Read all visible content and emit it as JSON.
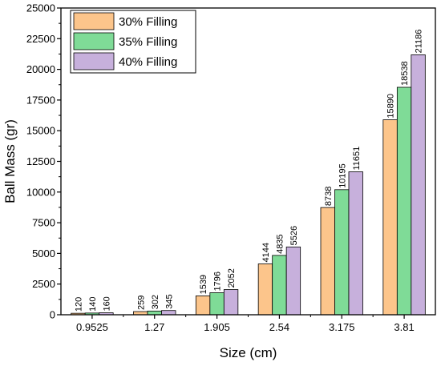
{
  "chart_data": {
    "type": "bar",
    "title": "",
    "xlabel": "Size (cm)",
    "ylabel": "Ball Mass (gr)",
    "categories": [
      "0.9525",
      "1.27",
      "1.905",
      "2.54",
      "3.175",
      "3.81"
    ],
    "series": [
      {
        "name": "30% Filling",
        "color": "#fcc58b",
        "values": [
          120,
          259,
          1539,
          4144,
          8738,
          15890
        ]
      },
      {
        "name": "35% Filling",
        "color": "#7fdb97",
        "values": [
          140,
          302,
          1796,
          4835,
          10195,
          18538
        ]
      },
      {
        "name": "40% Filling",
        "color": "#c7b0dc",
        "values": [
          160,
          345,
          2052,
          5526,
          11651,
          21186
        ]
      }
    ],
    "ylim": [
      0,
      25000
    ],
    "yticks": [
      0,
      2500,
      5000,
      7500,
      10000,
      12500,
      15000,
      17500,
      20000,
      22500,
      25000
    ],
    "legend_position": "top-left",
    "grid": false
  }
}
